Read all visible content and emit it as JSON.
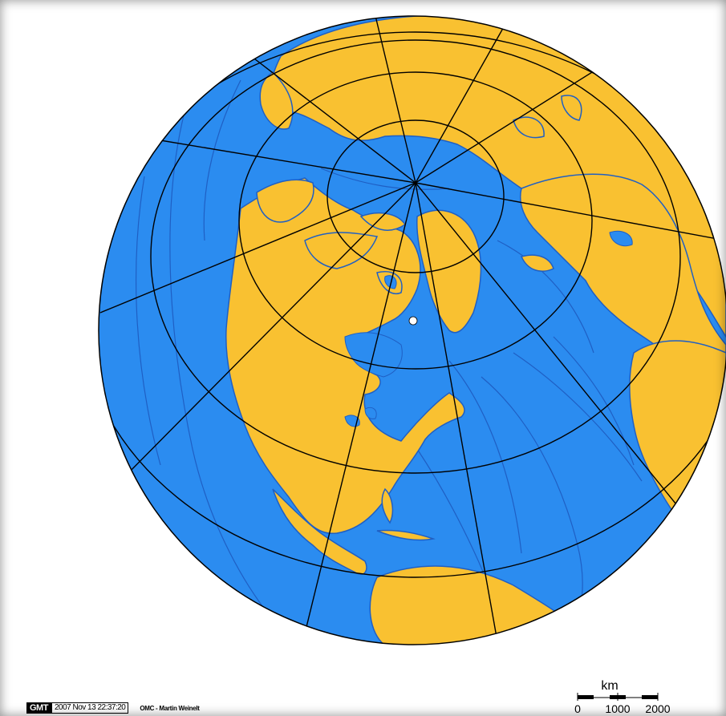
{
  "map": {
    "projection": "orthographic",
    "colors": {
      "ocean": "#2b8cf0",
      "land": "#f9c131",
      "graticule": "#000000",
      "coastline": "#1f5fc4",
      "marker": "#ffffff"
    },
    "marker": {
      "icon": "location-dot"
    }
  },
  "scale_bar": {
    "unit": "km",
    "ticks": [
      "0",
      "1000",
      "2000"
    ]
  },
  "gmt_stamp": {
    "logo": "GMT",
    "timestamp": "2007 Nov 13 22:37:20"
  },
  "credit": "OMC - Martin Weinelt"
}
